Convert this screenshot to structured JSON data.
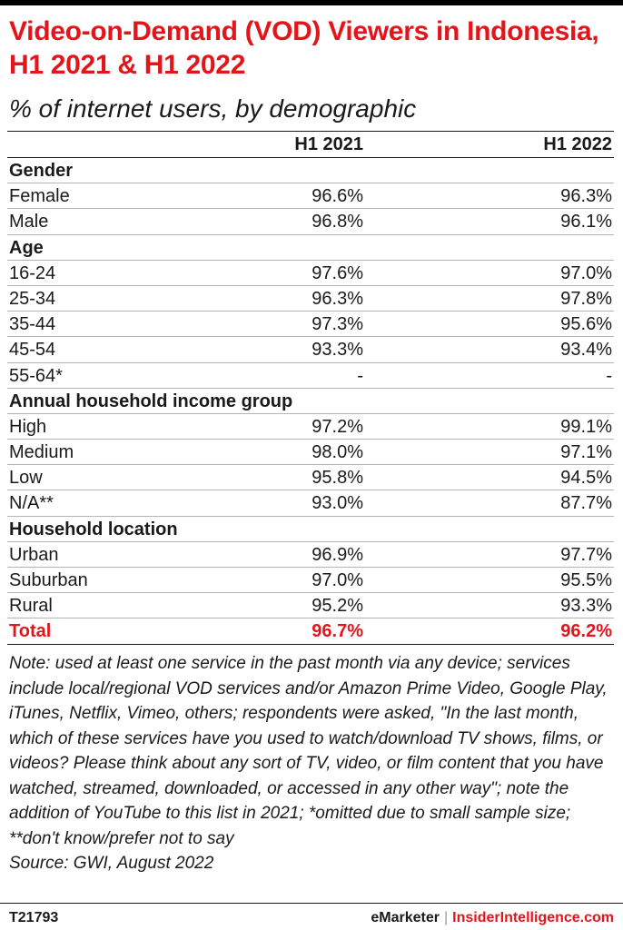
{
  "chart_data": {
    "type": "table",
    "title": "Video-on-Demand (VOD) Viewers in Indonesia, H1 2021 & H1 2022",
    "subtitle": "% of internet users, by demographic",
    "columns": [
      "H1 2021",
      "H1 2022"
    ],
    "groups": [
      {
        "name": "Gender",
        "rows": [
          {
            "label": "Female",
            "values": [
              "96.6%",
              "96.3%"
            ]
          },
          {
            "label": "Male",
            "values": [
              "96.8%",
              "96.1%"
            ]
          }
        ]
      },
      {
        "name": "Age",
        "rows": [
          {
            "label": "16-24",
            "values": [
              "97.6%",
              "97.0%"
            ]
          },
          {
            "label": "25-34",
            "values": [
              "96.3%",
              "97.8%"
            ]
          },
          {
            "label": "35-44",
            "values": [
              "97.3%",
              "95.6%"
            ]
          },
          {
            "label": "45-54",
            "values": [
              "93.3%",
              "93.4%"
            ]
          },
          {
            "label": "55-64*",
            "values": [
              "-",
              "-"
            ]
          }
        ]
      },
      {
        "name": "Annual household income group",
        "rows": [
          {
            "label": "High",
            "values": [
              "97.2%",
              "99.1%"
            ]
          },
          {
            "label": "Medium",
            "values": [
              "98.0%",
              "97.1%"
            ]
          },
          {
            "label": "Low",
            "values": [
              "95.8%",
              "94.5%"
            ]
          },
          {
            "label": "N/A**",
            "values": [
              "93.0%",
              "87.7%"
            ]
          }
        ]
      },
      {
        "name": "Household location",
        "rows": [
          {
            "label": "Urban",
            "values": [
              "96.9%",
              "97.7%"
            ]
          },
          {
            "label": "Suburban",
            "values": [
              "97.0%",
              "95.5%"
            ]
          },
          {
            "label": "Rural",
            "values": [
              "95.2%",
              "93.3%"
            ]
          }
        ]
      }
    ],
    "total": {
      "label": "Total",
      "values": [
        "96.7%",
        "96.2%"
      ]
    }
  },
  "note": "Note: used at least one service in the past month via any device; services include local/regional VOD services and/or Amazon Prime Video, Google Play, iTunes, Netflix, Vimeo, others; respondents were asked, \"In the last month, which of these services have you used to watch/download TV shows, films, or videos? Please think about any sort of TV, video, or film content that you have watched, streamed, downloaded, or accessed in any other way\"; note the addition of YouTube to this list in 2021; *omitted due to small sample size; **don't know/prefer not to say",
  "source": "Source: GWI, August 2022",
  "footer": {
    "id": "T21793",
    "brand": "eMarketer",
    "separator": "|",
    "brand2": "InsiderIntelligence.com"
  },
  "colors": {
    "accent": "#e3151a",
    "text": "#1a1a1a",
    "rule": "#b5b5b5"
  }
}
